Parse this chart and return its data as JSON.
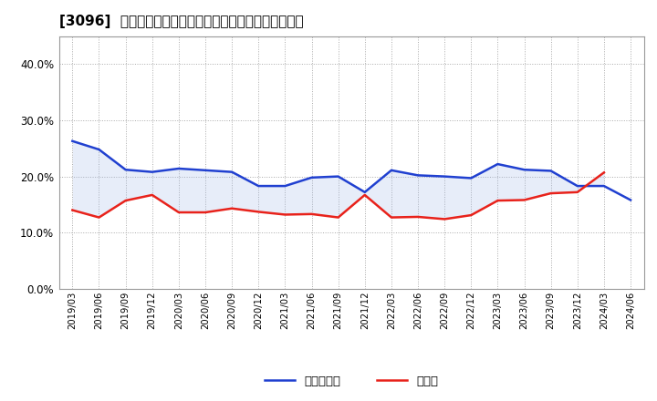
{
  "title": "[3096]  現預金、有利子負債の総資産に対する比率の推移",
  "x_labels": [
    "2019/03",
    "2019/06",
    "2019/09",
    "2019/12",
    "2020/03",
    "2020/06",
    "2020/09",
    "2020/12",
    "2021/03",
    "2021/06",
    "2021/09",
    "2021/12",
    "2022/03",
    "2022/06",
    "2022/09",
    "2022/12",
    "2023/03",
    "2023/06",
    "2023/09",
    "2023/12",
    "2024/03",
    "2024/06"
  ],
  "cash": [
    0.14,
    0.127,
    0.157,
    0.167,
    0.136,
    0.136,
    0.143,
    0.137,
    0.132,
    0.133,
    0.127,
    0.167,
    0.127,
    0.128,
    0.124,
    0.131,
    0.157,
    0.158,
    0.17,
    0.172,
    0.207,
    null
  ],
  "debt": [
    0.263,
    0.248,
    0.212,
    0.208,
    0.214,
    0.211,
    0.208,
    0.183,
    0.183,
    0.198,
    0.2,
    0.172,
    0.211,
    0.202,
    0.2,
    0.197,
    0.222,
    0.212,
    0.21,
    0.183,
    0.183,
    0.158
  ],
  "cash_color": "#e8221b",
  "debt_color": "#2040d0",
  "fill_color": "#a0b8e8",
  "background_color": "#ffffff",
  "grid_color": "#aaaaaa",
  "ylim": [
    0.0,
    0.45
  ],
  "yticks": [
    0.0,
    0.1,
    0.2,
    0.3,
    0.4
  ],
  "legend_cash": "現預金",
  "legend_debt": "有利子負債"
}
